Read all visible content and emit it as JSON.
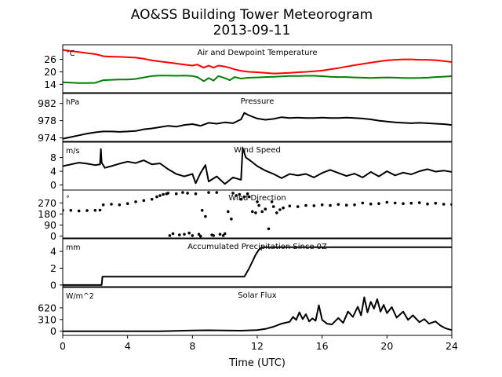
{
  "figure": {
    "title_line1": "AO&SS Building Tower Meteorogram",
    "title_line2": "2013-09-11",
    "xlabel": "Time (UTC)"
  },
  "chart_data": [
    {
      "type": "line",
      "title": "Air and Dewpoint Temperature",
      "unit": "°C",
      "yticks": [
        14,
        20,
        26
      ],
      "ylim": [
        10,
        33
      ],
      "xlim": [
        0,
        24
      ],
      "series": [
        {
          "color": "#ff0000",
          "x": [
            0,
            0.5,
            1,
            1.5,
            2,
            2.3,
            2.5,
            3,
            3.5,
            4,
            4.5,
            5,
            5.5,
            6,
            6.5,
            7,
            7.5,
            8,
            8.3,
            8.7,
            9,
            9.3,
            9.6,
            10,
            10.3,
            10.6,
            11,
            11.5,
            12,
            12.5,
            13,
            13.5,
            14,
            14.5,
            15,
            15.5,
            16,
            16.5,
            17,
            17.5,
            18,
            18.5,
            19,
            19.5,
            20,
            20.5,
            21,
            21.5,
            22,
            22.5,
            23,
            23.5,
            24
          ],
          "values": [
            30.5,
            30,
            29.5,
            29,
            28.5,
            28,
            27.5,
            27.3,
            27.2,
            27,
            26.8,
            26.3,
            25.5,
            25,
            24.5,
            24,
            23.5,
            23,
            23.5,
            22,
            23,
            22,
            23,
            22.5,
            22,
            21.2,
            20.5,
            20,
            19.8,
            19.5,
            19.2,
            19.3,
            19.5,
            19.8,
            20,
            20.3,
            20.6,
            21.2,
            21.8,
            22.5,
            23.2,
            23.8,
            24.4,
            25,
            25.5,
            25.8,
            26,
            26,
            25.8,
            25.8,
            25.6,
            25.2,
            24.7
          ]
        },
        {
          "color": "#008000",
          "x": [
            0,
            0.5,
            1,
            1.5,
            2,
            2.3,
            2.5,
            3,
            3.5,
            4,
            4.5,
            5,
            5.5,
            6,
            6.5,
            7,
            7.5,
            8,
            8.3,
            8.7,
            9,
            9.3,
            9.6,
            10,
            10.3,
            10.6,
            11,
            11.5,
            12,
            12.5,
            13,
            13.5,
            14,
            14.5,
            15,
            15.5,
            16,
            16.5,
            17,
            17.5,
            18,
            18.5,
            19,
            19.5,
            20,
            20.5,
            21,
            21.5,
            22,
            22.5,
            23,
            23.5,
            24
          ],
          "values": [
            15,
            14.8,
            14.6,
            14.6,
            14.7,
            15.5,
            16,
            16.2,
            16.3,
            16.3,
            16.6,
            17.3,
            18,
            18.2,
            18.2,
            18.1,
            18.2,
            18,
            17.5,
            15.5,
            17,
            15.8,
            18,
            17,
            16,
            17.5,
            16.8,
            17.2,
            17.3,
            17.5,
            17.6,
            17.8,
            18,
            18,
            18.1,
            18.1,
            17.9,
            17.6,
            17.5,
            17.5,
            17.3,
            17.2,
            17.1,
            17.2,
            17.3,
            17.2,
            17.1,
            17,
            17.1,
            17.2,
            17.5,
            17.7,
            17.9
          ]
        }
      ]
    },
    {
      "type": "line",
      "title": "Pressure",
      "unit": "hPa",
      "yticks": [
        974,
        978,
        982
      ],
      "ylim": [
        973.2,
        984.3
      ],
      "xlim": [
        0,
        24
      ],
      "series": [
        {
          "color": "#000000",
          "x": [
            0,
            0.5,
            1,
            1.5,
            2,
            2.5,
            3,
            3.5,
            4,
            4.5,
            5,
            5.5,
            6,
            6.5,
            7,
            7.5,
            8,
            8.5,
            9,
            9.5,
            10,
            10.5,
            11,
            11.2,
            11.5,
            12,
            12.5,
            13,
            13.5,
            14,
            14.5,
            15,
            15.5,
            16,
            16.5,
            17,
            17.5,
            18,
            18.5,
            19,
            19.5,
            20,
            20.5,
            21,
            21.5,
            22,
            22.5,
            23,
            23.5,
            24
          ],
          "values": [
            973.8,
            974.2,
            974.6,
            975,
            975.3,
            975.5,
            975.5,
            975.4,
            975.5,
            975.6,
            976,
            976.2,
            976.5,
            976.8,
            976.6,
            977,
            977.2,
            976.8,
            977.5,
            977.3,
            977.6,
            977.4,
            978.3,
            979.8,
            979.2,
            978.5,
            978.2,
            978.4,
            978.8,
            978.6,
            978.7,
            978.6,
            978.6,
            978.7,
            978.6,
            978.6,
            978.7,
            978.6,
            978.5,
            978.3,
            978,
            977.8,
            977.6,
            977.5,
            977.4,
            977.5,
            977.4,
            977.3,
            977.2,
            977
          ]
        }
      ]
    },
    {
      "type": "line",
      "title": "Wind Speed",
      "unit": "m/s",
      "yticks": [
        0,
        4,
        8
      ],
      "ylim": [
        -1.5,
        12.5
      ],
      "xlim": [
        0,
        24
      ],
      "series": [
        {
          "color": "#000000",
          "x": [
            0,
            0.5,
            1,
            1.5,
            2,
            2.3,
            2.35,
            2.4,
            2.6,
            3,
            3.5,
            4,
            4.5,
            5,
            5.5,
            6,
            6.5,
            7,
            7.5,
            8,
            8.2,
            8.5,
            8.8,
            9,
            9.5,
            10,
            10.5,
            11,
            11.1,
            11.3,
            11.6,
            12,
            12.5,
            13,
            13.5,
            14,
            14.5,
            15,
            15.5,
            16,
            16.5,
            17,
            17.5,
            18,
            18.5,
            19,
            19.5,
            20,
            20.5,
            21,
            21.5,
            22,
            22.5,
            23,
            23.5,
            24
          ],
          "values": [
            5.5,
            6,
            6.5,
            6.2,
            5.8,
            6,
            10.5,
            6.5,
            5,
            5.5,
            6.2,
            6.8,
            6.4,
            7.2,
            6,
            6.3,
            4.6,
            3.2,
            2.5,
            3.2,
            0.5,
            3.5,
            5.8,
            1,
            2.5,
            0.3,
            2.2,
            1.5,
            10.8,
            8,
            7,
            5.5,
            4.2,
            3.2,
            2,
            3.2,
            2.8,
            3.2,
            2.2,
            3.5,
            4.4,
            3.5,
            2.6,
            3.3,
            2.2,
            3.8,
            2.5,
            4,
            2.8,
            3.6,
            3.1,
            4,
            4.6,
            3.9,
            4.2,
            3.8
          ]
        }
      ]
    },
    {
      "type": "scatter",
      "title": "Wind Direction",
      "unit": "°",
      "yticks": [
        0,
        90,
        180,
        270
      ],
      "ylim": [
        -15,
        375
      ],
      "xlim": [
        0,
        24
      ],
      "series": [
        {
          "color": "#000000",
          "x": [
            0,
            0.5,
            1,
            1.5,
            2,
            2.3,
            2.5,
            3,
            3.5,
            4,
            4.5,
            5,
            5.5,
            5.8,
            6,
            6.2,
            6.4,
            6.5,
            6.6,
            6.8,
            7,
            7.2,
            7.4,
            7.5,
            7.7,
            7.8,
            8,
            8.2,
            8.4,
            8.5,
            8.6,
            8.8,
            9,
            9.2,
            9.3,
            9.5,
            9.7,
            9.9,
            10,
            10.2,
            10.4,
            10.5,
            10.7,
            10.9,
            11,
            11.2,
            11.4,
            11.5,
            11.7,
            11.9,
            12,
            12.1,
            12.3,
            12.5,
            12.7,
            12.9,
            13,
            13.2,
            13.4,
            13.6,
            14,
            14.5,
            15,
            15.5,
            16,
            16.5,
            17,
            17.5,
            18,
            18.5,
            19,
            19.5,
            20,
            20.5,
            21,
            21.5,
            22,
            22.5,
            23,
            23.5,
            24
          ],
          "values": [
            210,
            210,
            205,
            208,
            210,
            212,
            255,
            260,
            255,
            265,
            280,
            290,
            300,
            320,
            330,
            340,
            345,
            350,
            5,
            20,
            345,
            10,
            355,
            15,
            350,
            25,
            5,
            345,
            15,
            0,
            210,
            160,
            355,
            10,
            5,
            355,
            15,
            5,
            20,
            200,
            140,
            350,
            330,
            340,
            300,
            320,
            345,
            320,
            200,
            190,
            280,
            250,
            200,
            220,
            60,
            280,
            240,
            190,
            215,
            230,
            245,
            240,
            250,
            248,
            255,
            250,
            258,
            252,
            255,
            270,
            262,
            265,
            275,
            270,
            265,
            268,
            272,
            262,
            268,
            260,
            258
          ]
        }
      ]
    },
    {
      "type": "line",
      "title": "Accumulated Precipitation Since 0Z",
      "unit": "mm",
      "yticks": [
        0,
        2,
        4
      ],
      "ylim": [
        -0.2,
        5.5
      ],
      "xlim": [
        0,
        24
      ],
      "series": [
        {
          "color": "#000000",
          "x": [
            0,
            2.4,
            2.45,
            11.2,
            11.3,
            11.5,
            11.7,
            11.9,
            12.1,
            12.3,
            24
          ],
          "values": [
            0,
            0,
            1.0,
            1.0,
            1.3,
            2.0,
            2.8,
            3.6,
            4.2,
            4.5,
            4.5
          ]
        }
      ]
    },
    {
      "type": "line",
      "title": "Solar Flux",
      "unit": "W/m^2",
      "yticks": [
        0,
        310,
        620
      ],
      "ylim": [
        -110,
        1160
      ],
      "xlim": [
        0,
        24
      ],
      "series": [
        {
          "color": "#000000",
          "x": [
            0,
            6,
            6.5,
            7,
            8,
            9,
            10,
            11,
            12,
            12.5,
            13,
            13.5,
            14,
            14.2,
            14.4,
            14.6,
            14.8,
            15,
            15.2,
            15.4,
            15.6,
            15.8,
            16,
            16.3,
            16.6,
            17,
            17.3,
            17.6,
            17.9,
            18.2,
            18.4,
            18.6,
            18.8,
            19,
            19.2,
            19.4,
            19.6,
            19.8,
            20,
            20.3,
            20.6,
            21,
            21.3,
            21.6,
            22,
            22.3,
            22.6,
            23,
            23.3,
            23.6,
            24
          ],
          "values": [
            0,
            0,
            5,
            10,
            20,
            25,
            20,
            15,
            30,
            60,
            120,
            200,
            250,
            380,
            300,
            500,
            320,
            450,
            260,
            340,
            280,
            690,
            300,
            200,
            180,
            350,
            220,
            520,
            380,
            650,
            420,
            900,
            500,
            780,
            600,
            850,
            520,
            700,
            480,
            640,
            360,
            520,
            300,
            420,
            240,
            320,
            200,
            260,
            150,
            80,
            30
          ]
        }
      ]
    }
  ]
}
